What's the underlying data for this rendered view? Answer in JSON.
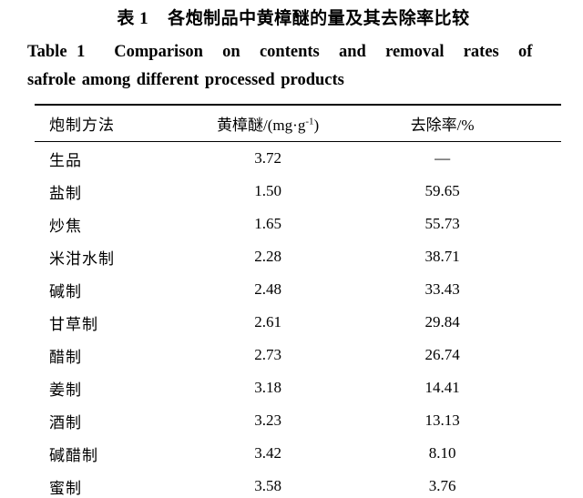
{
  "titles": {
    "chinese": "表 1    各炮制品中黄樟醚的量及其去除率比较",
    "english_line1": "Table 1   Comparison  on  contents  and  removal  rates  of",
    "english_line2": "safrole among different processed products"
  },
  "table": {
    "headers": {
      "method": "炮制方法",
      "safrole_prefix": "黄樟醚/(mg·g",
      "safrole_sup": "-1",
      "safrole_suffix": ")",
      "removal": "去除率/%"
    },
    "rows": [
      {
        "method": "生品",
        "safrole": "3.72",
        "removal": "—"
      },
      {
        "method": "盐制",
        "safrole": "1.50",
        "removal": "59.65"
      },
      {
        "method": "炒焦",
        "safrole": "1.65",
        "removal": "55.73"
      },
      {
        "method": "米泔水制",
        "safrole": "2.28",
        "removal": "38.71"
      },
      {
        "method": "碱制",
        "safrole": "2.48",
        "removal": "33.43"
      },
      {
        "method": "甘草制",
        "safrole": "2.61",
        "removal": "29.84"
      },
      {
        "method": "醋制",
        "safrole": "2.73",
        "removal": "26.74"
      },
      {
        "method": "姜制",
        "safrole": "3.18",
        "removal": "14.41"
      },
      {
        "method": "酒制",
        "safrole": "3.23",
        "removal": "13.13"
      },
      {
        "method": "碱醋制",
        "safrole": "3.42",
        "removal": "8.10"
      },
      {
        "method": "蜜制",
        "safrole": "3.58",
        "removal": "3.76"
      }
    ]
  },
  "chart_data": {
    "type": "table",
    "title": "表1 各炮制品中黄樟醚的量及其去除率比较 / Table 1 Comparison on contents and removal rates of safrole among different processed products",
    "columns": [
      "炮制方法",
      "黄樟醚/(mg·g-1)",
      "去除率/%"
    ],
    "categories": [
      "生品",
      "盐制",
      "炒焦",
      "米泔水制",
      "碱制",
      "甘草制",
      "醋制",
      "姜制",
      "酒制",
      "碱醋制",
      "蜜制"
    ],
    "series": [
      {
        "name": "黄樟醚/(mg·g-1)",
        "values": [
          3.72,
          1.5,
          1.65,
          2.28,
          2.48,
          2.61,
          2.73,
          3.18,
          3.23,
          3.42,
          3.58
        ]
      },
      {
        "name": "去除率/%",
        "values": [
          null,
          59.65,
          55.73,
          38.71,
          33.43,
          29.84,
          26.74,
          14.41,
          13.13,
          8.1,
          3.76
        ]
      }
    ]
  }
}
